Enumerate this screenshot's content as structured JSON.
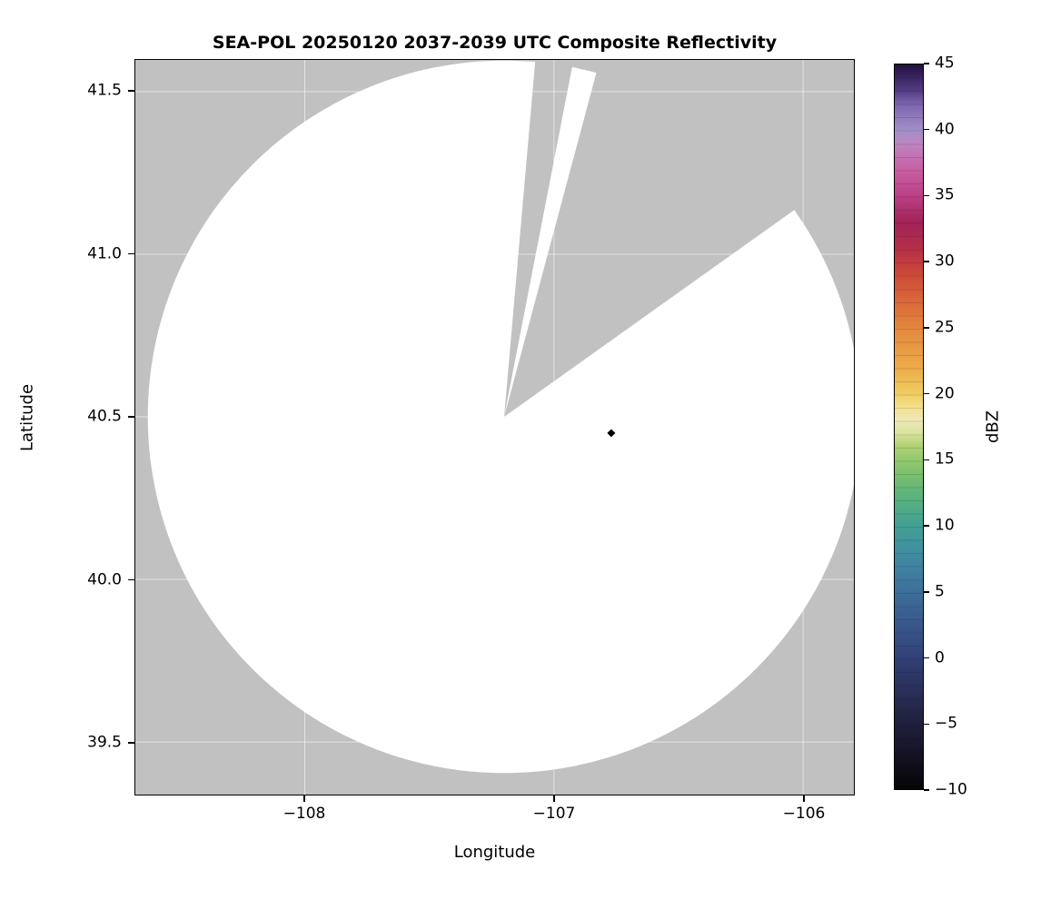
{
  "chart_data": {
    "type": "heatmap",
    "title": "SEA-POL 20250120 2037-2039 UTC Composite Reflectivity",
    "xlabel": "Longitude",
    "ylabel": "Latitude",
    "xlim": [
      -108.68,
      -105.8
    ],
    "ylim": [
      39.34,
      41.6
    ],
    "grid": true,
    "xticks": {
      "values": [
        -108,
        -107,
        -106
      ],
      "labels": [
        "−108",
        "−107",
        "−106"
      ]
    },
    "yticks": {
      "values": [
        41.5,
        41.0,
        40.5,
        40.0,
        39.5
      ],
      "labels": [
        "41.5",
        "41.0",
        "40.5",
        "40.0",
        "39.5"
      ]
    },
    "background_masked_color": "#c1c1c1",
    "coverage_fill_color": "#ffffff",
    "radar": {
      "center_lon": -107.2,
      "center_lat": 40.5,
      "range_lon_deg": 1.43,
      "note": "white disk = radar coverage area; no reflectivity at or above -10 dBZ shown"
    },
    "blocked_sectors_azimuth_deg": [
      [
        5.0,
        11.0
      ],
      [
        15.0,
        54.5
      ]
    ],
    "marker": {
      "lon": -106.77,
      "lat": 40.45,
      "shape": "diamond",
      "color": "#000000"
    },
    "colorbar": {
      "label": "dBZ",
      "min": -10,
      "max": 45,
      "ticks": [
        45,
        40,
        35,
        30,
        25,
        20,
        15,
        10,
        5,
        0,
        -5,
        -10
      ],
      "tick_labels": [
        "45",
        "40",
        "35",
        "30",
        "25",
        "20",
        "15",
        "10",
        "5",
        "0",
        "−5",
        "−10"
      ],
      "stops": [
        {
          "v": -10,
          "color": "#050505"
        },
        {
          "v": -8,
          "color": "#120f1e"
        },
        {
          "v": -6,
          "color": "#1c1a33"
        },
        {
          "v": -4,
          "color": "#242647"
        },
        {
          "v": -2,
          "color": "#2b335f"
        },
        {
          "v": 0,
          "color": "#314177"
        },
        {
          "v": 2,
          "color": "#375389"
        },
        {
          "v": 4,
          "color": "#3c6595"
        },
        {
          "v": 6,
          "color": "#3f799f"
        },
        {
          "v": 8,
          "color": "#408da0"
        },
        {
          "v": 10,
          "color": "#42a093"
        },
        {
          "v": 12,
          "color": "#57b17f"
        },
        {
          "v": 14,
          "color": "#7cc06c"
        },
        {
          "v": 16,
          "color": "#aed174"
        },
        {
          "v": 17,
          "color": "#d8e39c"
        },
        {
          "v": 18,
          "color": "#efe9b9"
        },
        {
          "v": 19,
          "color": "#f2df8d"
        },
        {
          "v": 20,
          "color": "#f0cd62"
        },
        {
          "v": 22,
          "color": "#ecab49"
        },
        {
          "v": 25,
          "color": "#e4873e"
        },
        {
          "v": 27,
          "color": "#da683a"
        },
        {
          "v": 29,
          "color": "#cd4a38"
        },
        {
          "v": 31,
          "color": "#b52f47"
        },
        {
          "v": 33,
          "color": "#a12458"
        },
        {
          "v": 35,
          "color": "#bb3f85"
        },
        {
          "v": 37,
          "color": "#c75fa4"
        },
        {
          "v": 39,
          "color": "#bd85c0"
        },
        {
          "v": 40,
          "color": "#a390c8"
        },
        {
          "v": 42,
          "color": "#7a64ad"
        },
        {
          "v": 43,
          "color": "#533d85"
        },
        {
          "v": 45,
          "color": "#22103f"
        }
      ]
    }
  }
}
